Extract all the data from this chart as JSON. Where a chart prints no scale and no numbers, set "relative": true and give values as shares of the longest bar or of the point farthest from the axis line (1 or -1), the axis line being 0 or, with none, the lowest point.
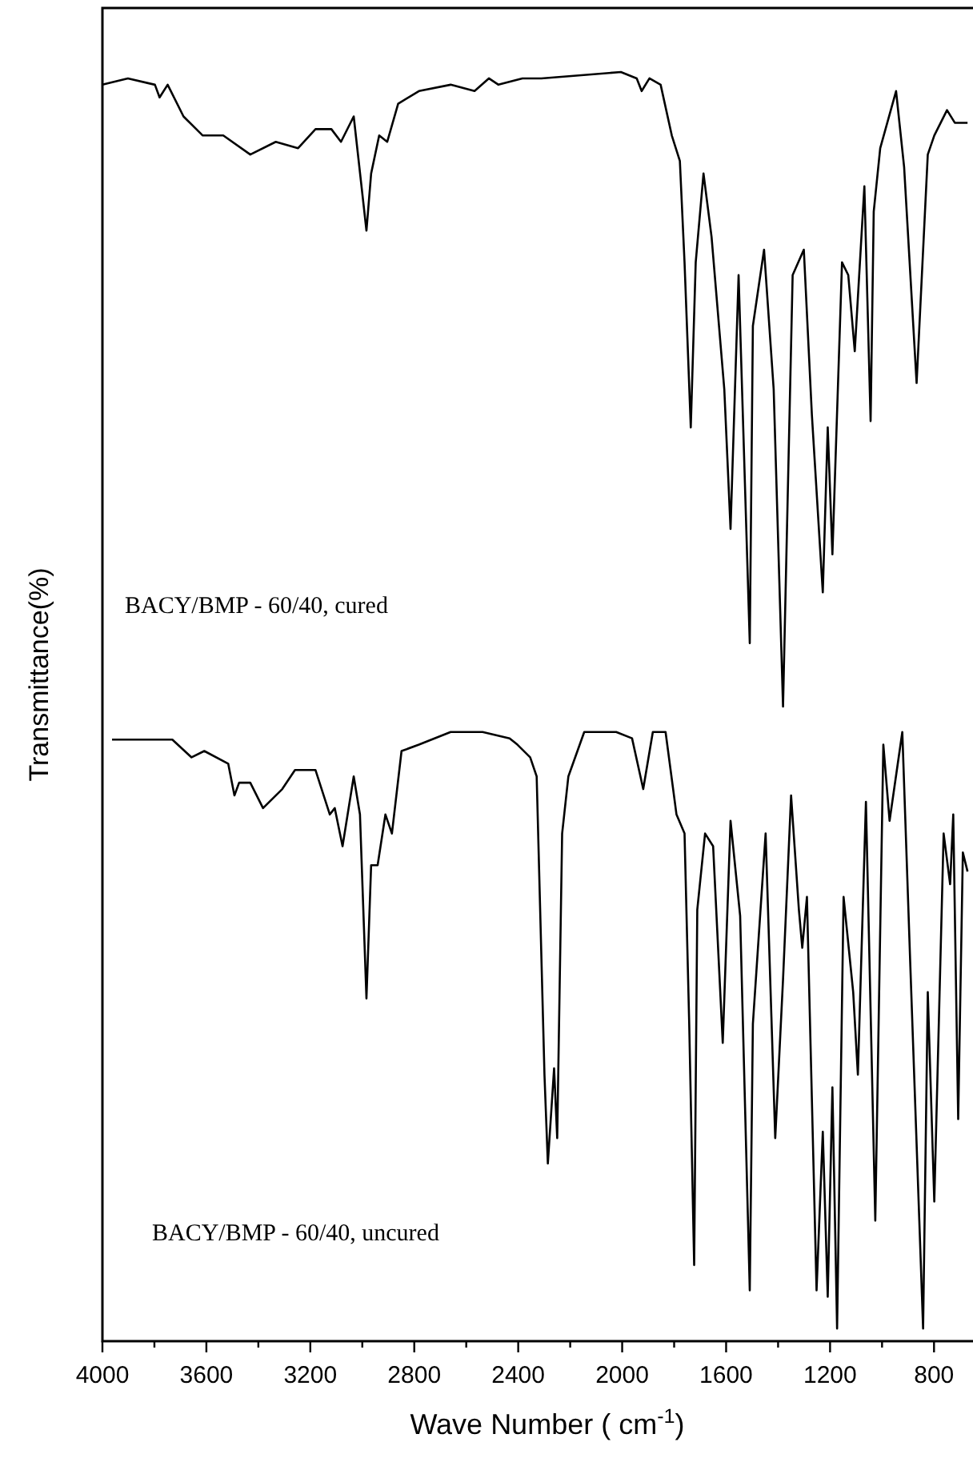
{
  "chart_data": {
    "type": "line",
    "relative": true,
    "xlabel": "Wave Number ( cm$^{-1}$)",
    "ylabel": "Transmittance(%)",
    "xlim": [
      4000,
      650
    ],
    "xticks": [
      4000,
      {
        "value": 3800,
        "label": null
      },
      3600,
      {
        "value": 3400,
        "label": null
      },
      3200,
      {
        "value": 3000,
        "label": null
      },
      2800,
      {
        "value": 2600,
        "label": null
      },
      2400,
      {
        "value": 2200,
        "label": null
      },
      2000,
      {
        "value": 1800,
        "label": null
      },
      1600,
      {
        "value": 1400,
        "label": null
      },
      1200,
      {
        "value": 1000,
        "label": null
      },
      800
    ],
    "tick_labels": "x",
    "grid": false,
    "marker": "none",
    "line_style": "solid",
    "annotations": [
      "BACY/BMP - 60/40, cured",
      "BACY/BMP - 60/40, uncured"
    ],
    "series": [
      {
        "color": "#000000",
        "x": [
          4000,
          3902,
          3798,
          3780,
          3749,
          3688,
          3614,
          3535,
          3431,
          3333,
          3247,
          3180,
          3119,
          3082,
          3033,
          2984,
          2966,
          2935,
          2904,
          2862,
          2782,
          2660,
          2568,
          2513,
          2476,
          2384,
          2311,
          2005,
          1944,
          1925,
          1895,
          1852,
          1809,
          1778,
          1760,
          1736,
          1717,
          1687,
          1656,
          1607,
          1583,
          1552,
          1509,
          1497,
          1454,
          1417,
          1381,
          1344,
          1301,
          1270,
          1228,
          1209,
          1191,
          1154,
          1130,
          1105,
          1068,
          1044,
          1032,
          1007,
          946,
          915,
          867,
          824,
          799,
          750,
          720,
          671
        ],
        "values": [
          0.99,
          0.995,
          0.99,
          0.98,
          0.99,
          0.965,
          0.95,
          0.95,
          0.935,
          0.945,
          0.94,
          0.955,
          0.955,
          0.945,
          0.965,
          0.875,
          0.92,
          0.95,
          0.945,
          0.975,
          0.985,
          0.99,
          0.985,
          0.995,
          0.99,
          0.995,
          0.995,
          1,
          0.995,
          0.985,
          0.995,
          0.99,
          0.95,
          0.93,
          0.85,
          0.72,
          0.85,
          0.92,
          0.87,
          0.75,
          0.64,
          0.84,
          0.55,
          0.8,
          0.86,
          0.75,
          0.5,
          0.84,
          0.86,
          0.73,
          0.59,
          0.72,
          0.62,
          0.85,
          0.84,
          0.78,
          0.91,
          0.725,
          0.89,
          0.94,
          0.985,
          0.925,
          0.755,
          0.935,
          0.95,
          0.97,
          0.96,
          0.96
        ]
      },
      {
        "color": "#000000",
        "x": [
          3963,
          3731,
          3657,
          3608,
          3516,
          3492,
          3474,
          3431,
          3382,
          3308,
          3259,
          3180,
          3125,
          3106,
          3076,
          3033,
          3009,
          2984,
          2966,
          2941,
          2911,
          2886,
          2849,
          2782,
          2660,
          2537,
          2433,
          2403,
          2354,
          2329,
          2299,
          2286,
          2262,
          2250,
          2231,
          2207,
          2146,
          2085,
          2023,
          1962,
          1919,
          1882,
          1833,
          1791,
          1760,
          1742,
          1723,
          1711,
          1681,
          1650,
          1613,
          1583,
          1546,
          1509,
          1497,
          1448,
          1411,
          1381,
          1350,
          1320,
          1307,
          1289,
          1252,
          1228,
          1209,
          1191,
          1173,
          1148,
          1111,
          1093,
          1062,
          1026,
          995,
          971,
          922,
          891,
          842,
          824,
          799,
          763,
          738,
          726,
          707,
          689,
          671
        ],
        "values": [
          0.474,
          0.474,
          0.46,
          0.465,
          0.455,
          0.43,
          0.44,
          0.44,
          0.42,
          0.435,
          0.45,
          0.45,
          0.415,
          0.42,
          0.39,
          0.445,
          0.415,
          0.27,
          0.375,
          0.375,
          0.415,
          0.4,
          0.465,
          0.47,
          0.48,
          0.48,
          0.475,
          0.47,
          0.46,
          0.445,
          0.21,
          0.14,
          0.215,
          0.16,
          0.4,
          0.445,
          0.48,
          0.48,
          0.48,
          0.475,
          0.435,
          0.48,
          0.48,
          0.415,
          0.4,
          0.25,
          0.06,
          0.34,
          0.4,
          0.39,
          0.235,
          0.41,
          0.335,
          0.04,
          0.25,
          0.4,
          0.16,
          0.285,
          0.43,
          0.34,
          0.31,
          0.35,
          0.04,
          0.165,
          0.035,
          0.2,
          0.01,
          0.35,
          0.275,
          0.21,
          0.425,
          0.095,
          0.47,
          0.41,
          0.48,
          0.295,
          0.01,
          0.275,
          0.11,
          0.4,
          0.36,
          0.415,
          0.175,
          0.385,
          0.37
        ]
      }
    ]
  }
}
